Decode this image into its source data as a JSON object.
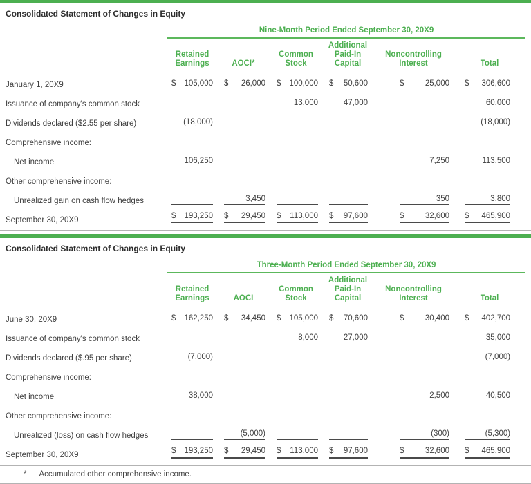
{
  "colors": {
    "accent_green": "#4caf50",
    "rule_gray": "#b3b3b3",
    "text": "#3f3f3f"
  },
  "footnote": {
    "marker": "*",
    "text": "Accumulated other comprehensive income."
  },
  "tables": [
    {
      "title": "Consolidated Statement of Changes in Equity",
      "period": "Nine-Month Period Ended September 30, 20X9",
      "columns": [
        "Retained\nEarnings",
        "AOCI*",
        "Common\nStock",
        "Additional\nPaid-In\nCapital",
        "Noncontrolling\nInterest",
        "Total"
      ],
      "rows": [
        {
          "label": "January 1, 20X9",
          "cells": [
            {
              "cur": "$",
              "val": "105,000"
            },
            {
              "cur": "$",
              "val": "26,000"
            },
            {
              "cur": "$",
              "val": "100,000"
            },
            {
              "cur": "$",
              "val": "50,600"
            },
            {
              "cur": "$",
              "val": "25,000"
            },
            {
              "cur": "$",
              "val": "306,600"
            }
          ]
        },
        {
          "label": "Issuance of company's common stock",
          "cells": [
            {},
            {},
            {
              "cur": "",
              "val": "13,000"
            },
            {
              "cur": "",
              "val": "47,000"
            },
            {},
            {
              "cur": "",
              "val": "60,000"
            }
          ]
        },
        {
          "label": "Dividends declared ($2.55 per share)",
          "cells": [
            {
              "cur": "",
              "val": "(18,000)"
            },
            {},
            {},
            {},
            {},
            {
              "cur": "",
              "val": "(18,000)"
            }
          ]
        },
        {
          "label": "Comprehensive income:",
          "cells": [
            {},
            {},
            {},
            {},
            {},
            {}
          ]
        },
        {
          "label": "Net income",
          "cells": [
            {
              "cur": "",
              "val": "106,250"
            },
            {},
            {},
            {},
            {
              "cur": "",
              "val": "7,250"
            },
            {
              "cur": "",
              "val": "113,500"
            }
          ]
        },
        {
          "label": "Other comprehensive income:",
          "cells": [
            {},
            {},
            {},
            {},
            {},
            {}
          ]
        },
        {
          "label": "Unrealized gain on cash flow hedges",
          "cells": [
            {},
            {
              "cur": "",
              "val": "3,450"
            },
            {},
            {},
            {
              "cur": "",
              "val": "350"
            },
            {
              "cur": "",
              "val": "3,800"
            }
          ]
        },
        {
          "label": "September 30, 20X9",
          "cells": [
            {
              "cur": "$",
              "val": "193,250"
            },
            {
              "cur": "$",
              "val": "29,450"
            },
            {
              "cur": "$",
              "val": "113,000"
            },
            {
              "cur": "$",
              "val": "97,600"
            },
            {
              "cur": "$",
              "val": "32,600"
            },
            {
              "cur": "$",
              "val": "465,900"
            }
          ]
        }
      ]
    },
    {
      "title": "Consolidated Statement of Changes in Equity",
      "period": "Three-Month Period Ended September 30, 20X9",
      "columns": [
        "Retained\nEarnings",
        "AOCI",
        "Common\nStock",
        "Additional\nPaid-In\nCapital",
        "Noncontrolling\nInterest",
        "Total"
      ],
      "rows": [
        {
          "label": "June 30, 20X9",
          "cells": [
            {
              "cur": "$",
              "val": "162,250"
            },
            {
              "cur": "$",
              "val": "34,450"
            },
            {
              "cur": "$",
              "val": "105,000"
            },
            {
              "cur": "$",
              "val": "70,600"
            },
            {
              "cur": "$",
              "val": "30,400"
            },
            {
              "cur": "$",
              "val": "402,700"
            }
          ]
        },
        {
          "label": "Issuance of company's common stock",
          "cells": [
            {},
            {},
            {
              "cur": "",
              "val": "8,000"
            },
            {
              "cur": "",
              "val": "27,000"
            },
            {},
            {
              "cur": "",
              "val": "35,000"
            }
          ]
        },
        {
          "label": "Dividends declared ($.95 per share)",
          "cells": [
            {
              "cur": "",
              "val": "(7,000)"
            },
            {},
            {},
            {},
            {},
            {
              "cur": "",
              "val": "(7,000)"
            }
          ]
        },
        {
          "label": "Comprehensive income:",
          "cells": [
            {},
            {},
            {},
            {},
            {},
            {}
          ]
        },
        {
          "label": "Net income",
          "cells": [
            {
              "cur": "",
              "val": "38,000"
            },
            {},
            {},
            {},
            {
              "cur": "",
              "val": "2,500"
            },
            {
              "cur": "",
              "val": "40,500"
            }
          ]
        },
        {
          "label": "Other comprehensive income:",
          "cells": [
            {},
            {},
            {},
            {},
            {},
            {}
          ]
        },
        {
          "label": "Unrealized (loss) on cash flow hedges",
          "cells": [
            {},
            {
              "cur": "",
              "val": "(5,000)"
            },
            {},
            {},
            {
              "cur": "",
              "val": "(300)"
            },
            {
              "cur": "",
              "val": "(5,300)"
            }
          ]
        },
        {
          "label": "September 30, 20X9",
          "cells": [
            {
              "cur": "$",
              "val": "193,250"
            },
            {
              "cur": "$",
              "val": "29,450"
            },
            {
              "cur": "$",
              "val": "113,000"
            },
            {
              "cur": "$",
              "val": "97,600"
            },
            {
              "cur": "$",
              "val": "32,600"
            },
            {
              "cur": "$",
              "val": "465,900"
            }
          ]
        }
      ]
    }
  ]
}
